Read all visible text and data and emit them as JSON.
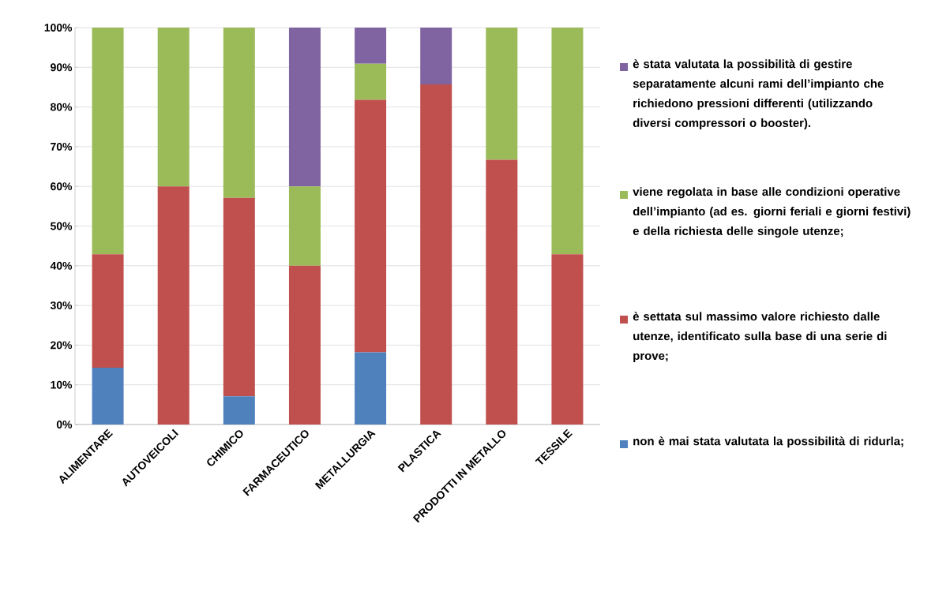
{
  "chart_data": {
    "type": "bar",
    "stacked": true,
    "categories": [
      "ALIMENTARE",
      "AUTOVEICOLI",
      "CHIMICO",
      "FARMACEUTICO",
      "METALLURGIA",
      "PLASTICA",
      "PRODOTTI IN METALLO",
      "TESSILE"
    ],
    "series": [
      {
        "name": "non è mai stata valutata la possibilità di ridurla;",
        "color": "#4f81bd",
        "values": [
          14.3,
          0,
          7.1,
          0,
          18.2,
          0,
          0,
          0
        ]
      },
      {
        "name": "è settata sul massimo valore richiesto dalle utenze, identificato sulla base di una serie di prove;",
        "color": "#c0504d",
        "values": [
          28.6,
          60,
          50,
          40,
          63.6,
          85.7,
          66.7,
          42.9
        ]
      },
      {
        "name": "viene regolata in base alle condizioni operative dell’impianto (ad es. giorni feriali e giorni festivi) e della richiesta delle singole utenze;",
        "color": "#9bbb59",
        "values": [
          57.1,
          40,
          42.9,
          20,
          9.1,
          0,
          33.3,
          57.1
        ]
      },
      {
        "name": "è stata valutata la possibilità di gestire separatamente alcuni rami dell’impianto che richiedono pressioni differenti (utilizzando diversi compressori o booster).",
        "color": "#8064a2",
        "values": [
          0,
          0,
          0,
          40,
          9.1,
          14.3,
          0,
          0
        ]
      }
    ],
    "ylim": [
      0,
      100
    ],
    "yticks": [
      {
        "value": 0,
        "label": "0%"
      },
      {
        "value": 10,
        "label": "10%"
      },
      {
        "value": 20,
        "label": "20%"
      },
      {
        "value": 30,
        "label": "30%"
      },
      {
        "value": 40,
        "label": "40%"
      },
      {
        "value": 50,
        "label": "50%"
      },
      {
        "value": 60,
        "label": "60%"
      },
      {
        "value": 70,
        "label": "70%"
      },
      {
        "value": 80,
        "label": "80%"
      },
      {
        "value": 90,
        "label": "90%"
      },
      {
        "value": 100,
        "label": "100%"
      }
    ],
    "grid": "y",
    "legend": "right"
  }
}
